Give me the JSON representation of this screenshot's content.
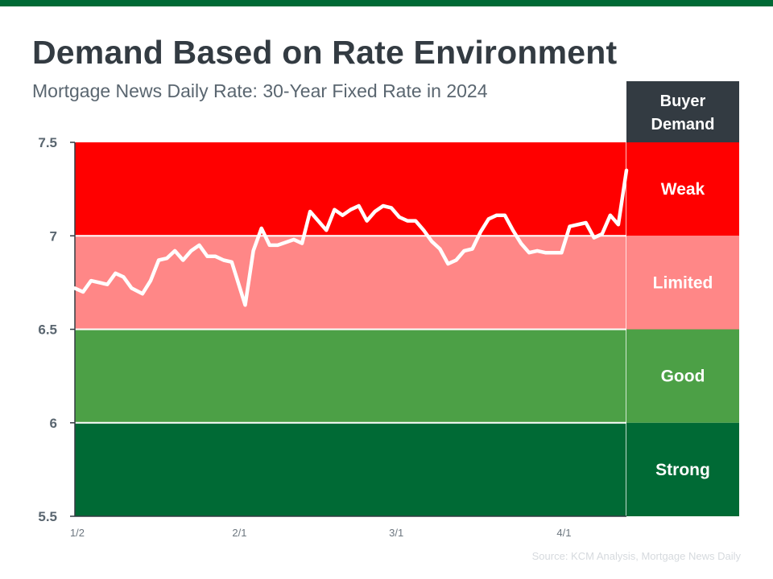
{
  "title": "Demand Based on Rate Environment",
  "subtitle": "Mortgage News Daily Rate: 30-Year Fixed Rate in 2024",
  "source": "Source: KCM Analysis, Mortgage News Daily",
  "colors": {
    "brand_bar": "#006a35",
    "weak": "#ff0000",
    "limited": "#ff8787",
    "good": "#4ca046",
    "strong": "#006a35",
    "header": "#333b42",
    "line": "#ffffff"
  },
  "chart_data": {
    "type": "line",
    "title": "Demand Based on Rate Environment",
    "subtitle": "Mortgage News Daily Rate: 30-Year Fixed Rate in 2024",
    "xlabel": "",
    "ylabel": "",
    "ylim": [
      5.5,
      7.5
    ],
    "y_ticks": [
      "7.5",
      "7",
      "6.5",
      "6",
      "5.5"
    ],
    "x_ticks": [
      {
        "label": "1/2",
        "day": 0
      },
      {
        "label": "2/1",
        "day": 30
      },
      {
        "label": "3/1",
        "day": 59
      },
      {
        "label": "4/1",
        "day": 90
      }
    ],
    "x_range_days": [
      0,
      102
    ],
    "grid": false,
    "legend": "right-side band labels",
    "bands": [
      {
        "label": "Weak",
        "from": 7.0,
        "to": 7.5,
        "color": "#ff0000"
      },
      {
        "label": "Limited",
        "from": 6.5,
        "to": 7.0,
        "color": "#ff8787"
      },
      {
        "label": "Good",
        "from": 6.0,
        "to": 6.5,
        "color": "#4ca046"
      },
      {
        "label": "Strong",
        "from": 5.5,
        "to": 6.0,
        "color": "#006a35"
      }
    ],
    "band_header": "Buyer Demand",
    "band_header_lines": [
      "Buyer",
      "Demand"
    ],
    "series": [
      {
        "points": [
          [
            0,
            6.72
          ],
          [
            1.5,
            6.7
          ],
          [
            3,
            6.76
          ],
          [
            6,
            6.74
          ],
          [
            7.5,
            6.8
          ],
          [
            9,
            6.78
          ],
          [
            10.5,
            6.72
          ],
          [
            12.5,
            6.69
          ],
          [
            14,
            6.76
          ],
          [
            15.5,
            6.87
          ],
          [
            17,
            6.88
          ],
          [
            18.5,
            6.92
          ],
          [
            20,
            6.87
          ],
          [
            21.5,
            6.92
          ],
          [
            23,
            6.95
          ],
          [
            24.5,
            6.89
          ],
          [
            26,
            6.89
          ],
          [
            27.5,
            6.87
          ],
          [
            29,
            6.86
          ],
          [
            31.5,
            6.63
          ],
          [
            33,
            6.92
          ],
          [
            34.5,
            7.04
          ],
          [
            36,
            6.95
          ],
          [
            37.5,
            6.95
          ],
          [
            40.5,
            6.98
          ],
          [
            42,
            6.96
          ],
          [
            43.5,
            7.13
          ],
          [
            46.5,
            7.03
          ],
          [
            48,
            7.14
          ],
          [
            49.5,
            7.11
          ],
          [
            51,
            7.14
          ],
          [
            52.5,
            7.16
          ],
          [
            54,
            7.08
          ],
          [
            55.5,
            7.13
          ],
          [
            57,
            7.16
          ],
          [
            58.5,
            7.15
          ],
          [
            60,
            7.1
          ],
          [
            61.5,
            7.08
          ],
          [
            63,
            7.08
          ],
          [
            64.5,
            7.03
          ],
          [
            66,
            6.97
          ],
          [
            67.5,
            6.93
          ],
          [
            69,
            6.85
          ],
          [
            70.5,
            6.87
          ],
          [
            72,
            6.92
          ],
          [
            73.5,
            6.93
          ],
          [
            75,
            7.02
          ],
          [
            76.5,
            7.09
          ],
          [
            78,
            7.11
          ],
          [
            79.5,
            7.11
          ],
          [
            81,
            7.03
          ],
          [
            82.5,
            6.96
          ],
          [
            84,
            6.91
          ],
          [
            85.5,
            6.92
          ],
          [
            87,
            6.91
          ],
          [
            88.5,
            6.91
          ],
          [
            90,
            6.91
          ],
          [
            91.5,
            7.05
          ],
          [
            94.5,
            7.07
          ],
          [
            96,
            6.99
          ],
          [
            97.5,
            7.01
          ],
          [
            99,
            7.11
          ],
          [
            100.5,
            7.06
          ],
          [
            102,
            7.35
          ]
        ]
      }
    ]
  }
}
